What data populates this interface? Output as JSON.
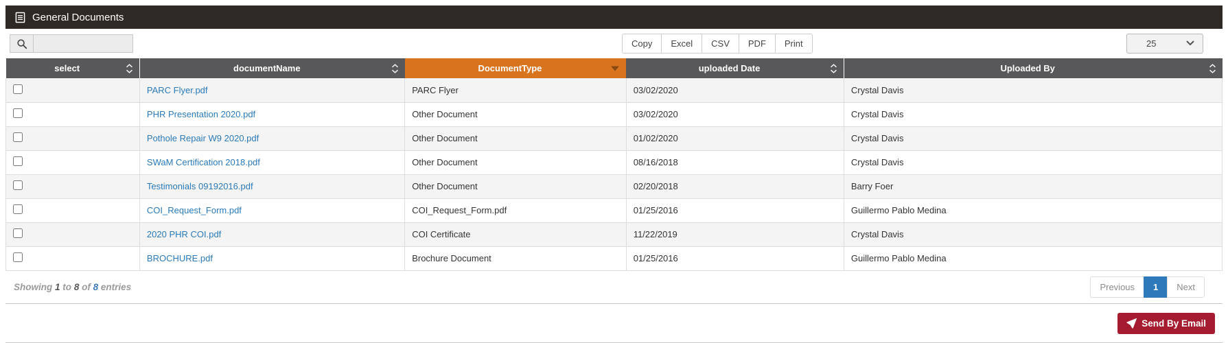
{
  "title_bar": {
    "title": "General Documents"
  },
  "toolbar": {
    "search": {
      "value": "",
      "placeholder": ""
    },
    "export_buttons": [
      {
        "label": "Copy"
      },
      {
        "label": "Excel"
      },
      {
        "label": "CSV"
      },
      {
        "label": "PDF"
      },
      {
        "label": "Print"
      }
    ],
    "length_select": {
      "selected": "25"
    }
  },
  "table": {
    "columns": [
      {
        "label": "select",
        "sort": "both"
      },
      {
        "label": "documentName",
        "sort": "both"
      },
      {
        "label": "DocumentType",
        "sort": "desc",
        "highlighted": true
      },
      {
        "label": "uploaded Date",
        "sort": "both"
      },
      {
        "label": "Uploaded By",
        "sort": "both"
      }
    ],
    "rows": [
      {
        "selected": false,
        "document_name": "PARC Flyer.pdf",
        "document_type": "PARC Flyer",
        "uploaded_date": "03/02/2020",
        "uploaded_by": "Crystal Davis"
      },
      {
        "selected": false,
        "document_name": "PHR Presentation 2020.pdf",
        "document_type": "Other Document",
        "uploaded_date": "03/02/2020",
        "uploaded_by": "Crystal Davis"
      },
      {
        "selected": false,
        "document_name": "Pothole Repair W9 2020.pdf",
        "document_type": "Other Document",
        "uploaded_date": "01/02/2020",
        "uploaded_by": "Crystal Davis"
      },
      {
        "selected": false,
        "document_name": "SWaM Certification 2018.pdf",
        "document_type": "Other Document",
        "uploaded_date": "08/16/2018",
        "uploaded_by": "Crystal Davis"
      },
      {
        "selected": false,
        "document_name": "Testimonials 09192016.pdf",
        "document_type": "Other Document",
        "uploaded_date": "02/20/2018",
        "uploaded_by": "Barry Foer"
      },
      {
        "selected": false,
        "document_name": "COI_Request_Form.pdf",
        "document_type": "COI_Request_Form.pdf",
        "uploaded_date": "01/25/2016",
        "uploaded_by": "Guillermo Pablo Medina"
      },
      {
        "selected": false,
        "document_name": "2020 PHR COI.pdf",
        "document_type": "COI Certificate",
        "uploaded_date": "11/22/2019",
        "uploaded_by": "Crystal Davis"
      },
      {
        "selected": false,
        "document_name": "BROCHURE.pdf",
        "document_type": "Brochure Document",
        "uploaded_date": "01/25/2016",
        "uploaded_by": "Guillermo Pablo Medina"
      }
    ]
  },
  "footer": {
    "info": {
      "prefix": "Showing",
      "from": "1",
      "to_word": "to",
      "to": "8",
      "of_word": "of",
      "total": "8",
      "suffix": "entries"
    },
    "pagination": {
      "previous": "Previous",
      "pages": [
        {
          "label": "1",
          "active": true
        }
      ],
      "next": "Next"
    }
  },
  "actions": {
    "send_by_email_label": "Send By Email"
  },
  "colors": {
    "title_bar_bg": "#2e2925",
    "table_header_bg": "#58585a",
    "sorted_column_bg": "#d8731e",
    "link": "#2a7ab9",
    "active_page_bg": "#2e79b9",
    "send_button_bg": "#a51c30"
  }
}
